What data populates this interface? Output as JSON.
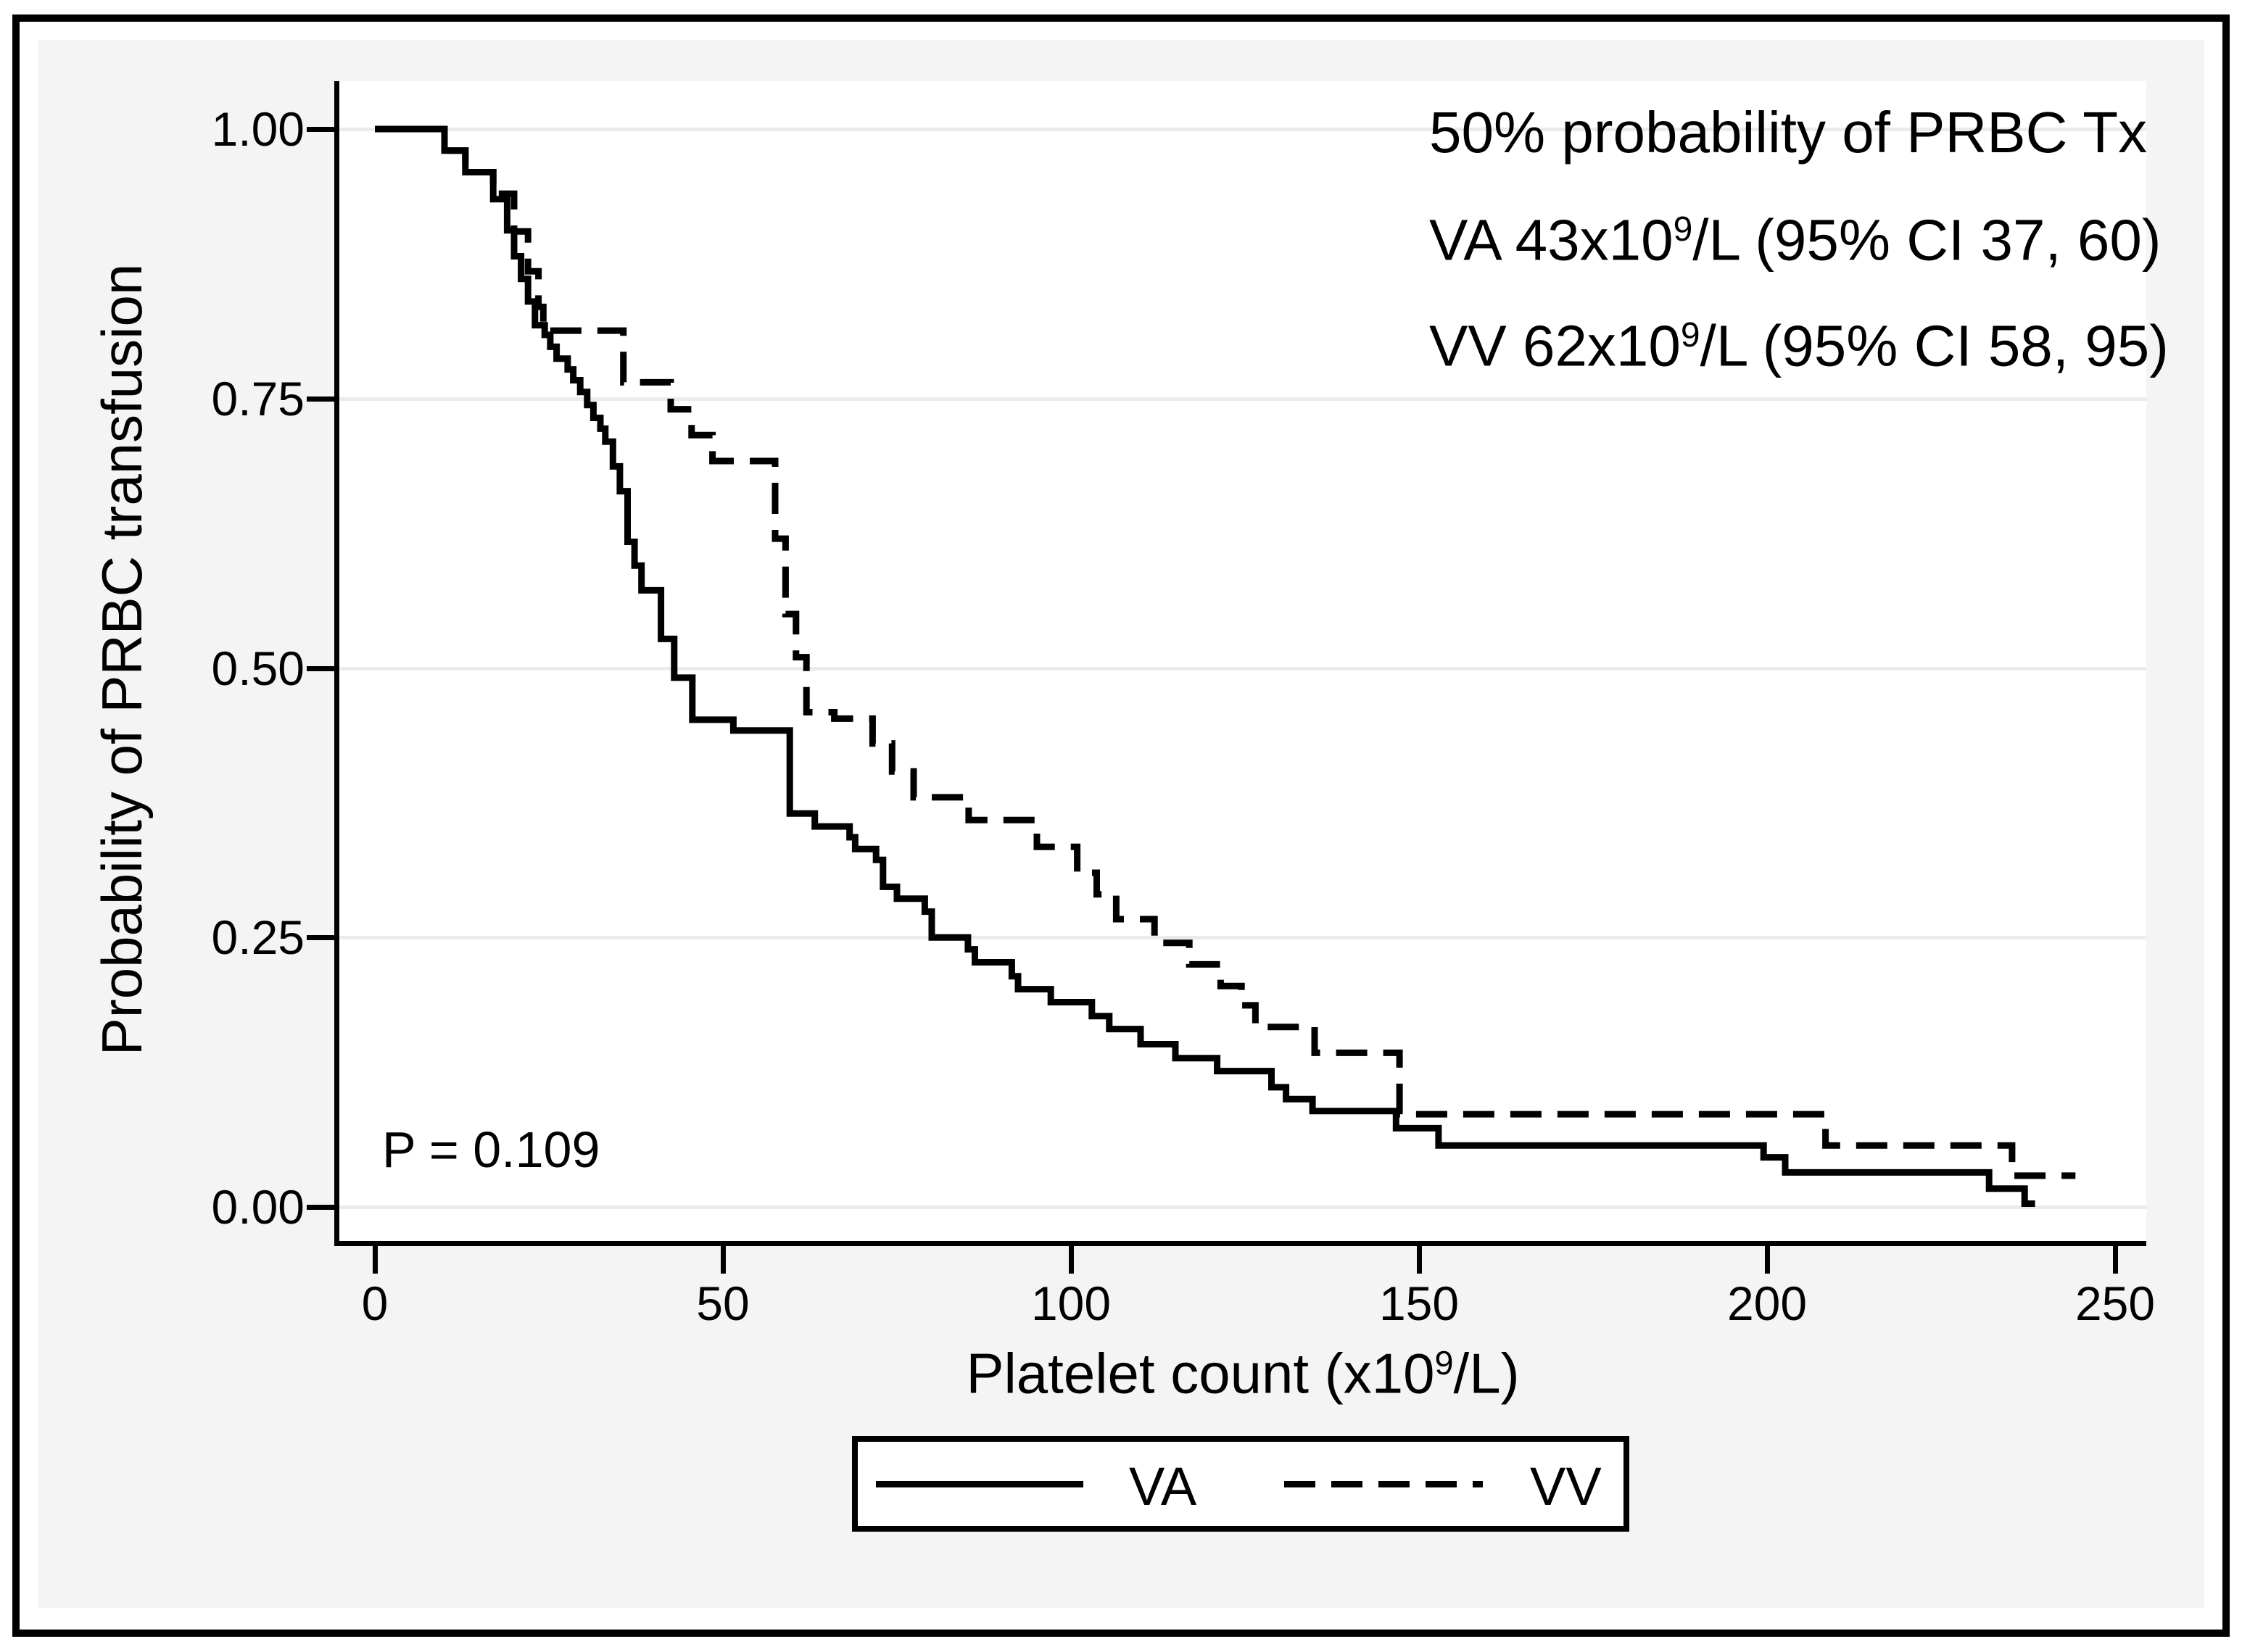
{
  "chart_data": {
    "type": "line",
    "subtype": "kaplan-meier-step",
    "xlabel_pre": "Platelet count (x10",
    "xlabel_sup": "9",
    "xlabel_post": "/L)",
    "ylabel": "Probability of PRBC transfusion",
    "xlim": [
      0,
      250
    ],
    "ylim": [
      0.0,
      1.0
    ],
    "x_ticks": [
      0,
      50,
      100,
      150,
      200,
      250
    ],
    "y_ticks": [
      "1.00",
      "0.75",
      "0.50",
      "0.25",
      "0.00"
    ],
    "y_tick_values": [
      1.0,
      0.75,
      0.5,
      0.25,
      0.0
    ],
    "grid": "horizontal",
    "line_color": "#000000",
    "grid_color": "#ebebeb",
    "background_color": "#f4f4f4",
    "p_value_label": "P = 0.109",
    "annotation": {
      "line1": "50% probability of PRBC Tx",
      "line2_pre": "VA 43x10",
      "line2_sup": "9",
      "line2_post": "/L (95% CI 37, 60)",
      "line3_pre": "VV 62x10",
      "line3_sup": "9",
      "line3_post": "/L (95% CI 58, 95)"
    },
    "legend_position": "bottom-center",
    "series": [
      {
        "name": "VA",
        "style": "solid",
        "median_platelet_count": 43,
        "median_ci": [
          37,
          60
        ],
        "end_x": 238.5,
        "steps": [
          [
            0,
            1.0
          ],
          [
            10,
            0.98
          ],
          [
            13,
            0.96
          ],
          [
            17,
            0.935
          ],
          [
            19,
            0.906
          ],
          [
            20,
            0.882
          ],
          [
            21,
            0.861
          ],
          [
            22,
            0.84
          ],
          [
            23,
            0.818
          ],
          [
            24.4,
            0.809
          ],
          [
            25.2,
            0.798
          ],
          [
            26.1,
            0.787
          ],
          [
            27.7,
            0.777
          ],
          [
            28.5,
            0.767
          ],
          [
            29.5,
            0.756
          ],
          [
            30.5,
            0.744
          ],
          [
            31.4,
            0.732
          ],
          [
            32.4,
            0.722
          ],
          [
            33.1,
            0.71
          ],
          [
            34.2,
            0.687
          ],
          [
            35.2,
            0.664
          ],
          [
            36.3,
            0.617
          ],
          [
            37.3,
            0.595
          ],
          [
            38.3,
            0.572
          ],
          [
            41.1,
            0.527
          ],
          [
            43.0,
            0.491
          ],
          [
            45.6,
            0.452
          ],
          [
            51.5,
            0.442
          ],
          [
            59.6,
            0.365
          ],
          [
            63.2,
            0.353
          ],
          [
            68.2,
            0.343
          ],
          [
            69.0,
            0.332
          ],
          [
            72.0,
            0.322
          ],
          [
            73.0,
            0.297
          ],
          [
            75.0,
            0.286
          ],
          [
            79.0,
            0.274
          ],
          [
            80.0,
            0.25
          ],
          [
            85.2,
            0.239
          ],
          [
            86.2,
            0.227
          ],
          [
            91.5,
            0.214
          ],
          [
            92.4,
            0.202
          ],
          [
            97.1,
            0.19
          ],
          [
            103.0,
            0.177
          ],
          [
            105.5,
            0.165
          ],
          [
            110.0,
            0.151
          ],
          [
            115.0,
            0.138
          ],
          [
            121.0,
            0.126
          ],
          [
            128.8,
            0.111
          ],
          [
            130.9,
            0.1
          ],
          [
            134.7,
            0.089
          ],
          [
            146.7,
            0.073
          ],
          [
            152.8,
            0.057
          ],
          [
            199.5,
            0.046
          ],
          [
            202.6,
            0.032
          ],
          [
            231.9,
            0.017
          ],
          [
            237.0,
            0.003
          ]
        ]
      },
      {
        "name": "VV",
        "style": "dashed",
        "median_platelet_count": 62,
        "median_ci": [
          58,
          95
        ],
        "end_x": 244.3,
        "steps": [
          [
            0,
            1.0
          ],
          [
            10,
            0.98
          ],
          [
            13,
            0.96
          ],
          [
            17,
            0.94
          ],
          [
            20,
            0.905
          ],
          [
            22,
            0.868
          ],
          [
            23.5,
            0.835
          ],
          [
            24.2,
            0.813
          ],
          [
            35.7,
            0.765
          ],
          [
            42.5,
            0.74
          ],
          [
            45.5,
            0.716
          ],
          [
            48.5,
            0.692
          ],
          [
            57.5,
            0.62
          ],
          [
            59.0,
            0.55
          ],
          [
            60.5,
            0.51
          ],
          [
            62.0,
            0.459
          ],
          [
            66.0,
            0.453
          ],
          [
            71.5,
            0.43
          ],
          [
            74.3,
            0.404
          ],
          [
            77.4,
            0.38
          ],
          [
            85.3,
            0.359
          ],
          [
            95.1,
            0.334
          ],
          [
            100.9,
            0.31
          ],
          [
            103.7,
            0.29
          ],
          [
            106.5,
            0.267
          ],
          [
            112.0,
            0.245
          ],
          [
            117.0,
            0.225
          ],
          [
            121.5,
            0.205
          ],
          [
            124.5,
            0.187
          ],
          [
            126.5,
            0.167
          ],
          [
            135.0,
            0.143
          ],
          [
            147.2,
            0.086
          ],
          [
            208.4,
            0.057
          ],
          [
            235.2,
            0.029
          ]
        ]
      }
    ]
  }
}
